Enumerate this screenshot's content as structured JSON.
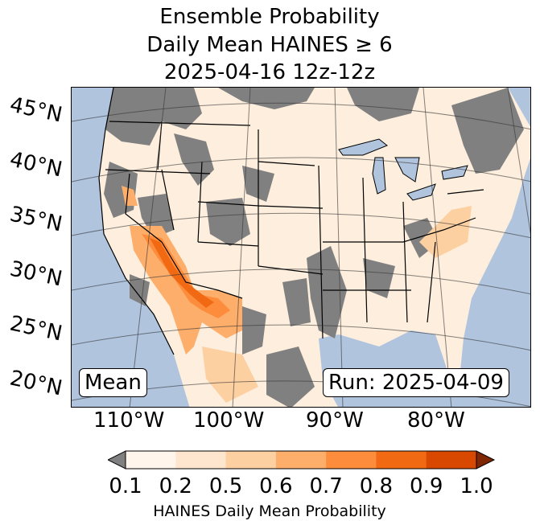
{
  "title": {
    "line1": "Ensemble Probability",
    "line2": "Daily Mean HAINES ≥ 6",
    "line3": "2025-04-16 12z-12z"
  },
  "lat_labels": [
    "45°N",
    "40°N",
    "35°N",
    "30°N",
    "25°N",
    "20°N"
  ],
  "lon_labels": [
    "110°W",
    "100°W",
    "90°W",
    "80°W"
  ],
  "mean_label": "Mean",
  "run_label": "Run: 2025-04-09",
  "colorbar": {
    "ticks": [
      "0.1",
      "0.2",
      "0.5",
      "0.6",
      "0.7",
      "0.8",
      "0.9",
      "1.0"
    ],
    "label": "HAINES Daily Mean Probability",
    "under_color": "#808080",
    "over_color": "#7f2704",
    "colors": [
      "#fff5eb",
      "#fee6ce",
      "#fdd0a2",
      "#fdae6b",
      "#fd8d3c",
      "#f16913",
      "#d94801"
    ]
  },
  "colors": {
    "ocean": "#b0c4de",
    "land": "#fdeedd",
    "missing": "#808080"
  }
}
